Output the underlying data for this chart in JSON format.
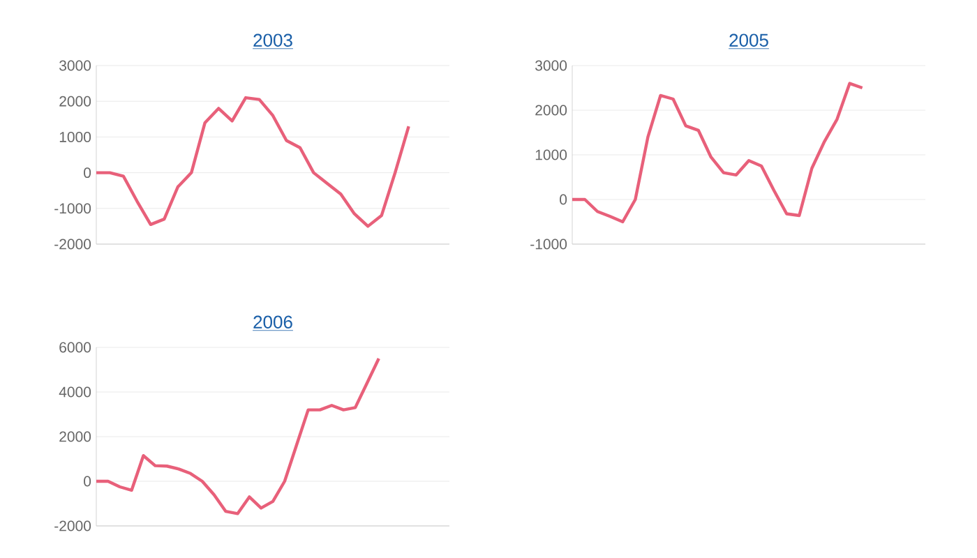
{
  "chart_data": [
    {
      "type": "line",
      "title": "2003",
      "categories": [
        null,
        null,
        null,
        null,
        null,
        null,
        null,
        null,
        null,
        null,
        null,
        null,
        null,
        null,
        null,
        null,
        null,
        null,
        null,
        null,
        null,
        null,
        null,
        null,
        null,
        null,
        null
      ],
      "series": [
        {
          "color": "#e8607a",
          "values": [
            0,
            0,
            -100,
            -800,
            -1450,
            -1300,
            -400,
            0,
            1400,
            1800,
            1450,
            2100,
            2050,
            1600,
            900,
            700,
            0,
            -300,
            -600,
            -1150,
            -1500,
            -1200,
            0,
            1300,
            null,
            null,
            null
          ]
        }
      ],
      "ylim": [
        -2000,
        3000
      ],
      "yticks": [
        -2000,
        -1000,
        0,
        1000,
        2000,
        3000
      ],
      "grid": "y",
      "tick_labels": "y",
      "marker": "none",
      "line_style": "solid"
    },
    {
      "type": "line",
      "title": "2005",
      "categories": [
        null,
        null,
        null,
        null,
        null,
        null,
        null,
        null,
        null,
        null,
        null,
        null,
        null,
        null,
        null,
        null,
        null,
        null,
        null,
        null,
        null,
        null,
        null,
        null,
        null,
        null,
        null,
        null,
        null
      ],
      "series": [
        {
          "color": "#e8607a",
          "values": [
            0,
            0,
            -270,
            -380,
            -500,
            0,
            1400,
            2330,
            2250,
            1650,
            1550,
            950,
            600,
            550,
            870,
            750,
            200,
            -320,
            -360,
            700,
            1300,
            1800,
            2600,
            2500,
            null,
            null,
            null,
            null,
            null
          ]
        }
      ],
      "ylim": [
        -1000,
        3000
      ],
      "yticks": [
        -1000,
        0,
        1000,
        2000,
        3000
      ],
      "grid": "y",
      "tick_labels": "y",
      "marker": "none",
      "line_style": "solid"
    },
    {
      "type": "line",
      "title": "2006",
      "categories": [
        null,
        null,
        null,
        null,
        null,
        null,
        null,
        null,
        null,
        null,
        null,
        null,
        null,
        null,
        null,
        null,
        null,
        null,
        null,
        null,
        null,
        null,
        null,
        null,
        null,
        null,
        null,
        null,
        null,
        null,
        null
      ],
      "series": [
        {
          "color": "#e8607a",
          "values": [
            0,
            0,
            -250,
            -400,
            1150,
            700,
            680,
            550,
            350,
            0,
            -600,
            -1350,
            -1450,
            -700,
            -1200,
            -900,
            0,
            1600,
            3200,
            3200,
            3400,
            3200,
            3300,
            4400,
            5500,
            null,
            null,
            null,
            null,
            null,
            null
          ]
        }
      ],
      "ylim": [
        -2000,
        6000
      ],
      "yticks": [
        -2000,
        0,
        2000,
        4000,
        6000
      ],
      "grid": "y",
      "tick_labels": "y",
      "marker": "none",
      "line_style": "solid"
    }
  ]
}
